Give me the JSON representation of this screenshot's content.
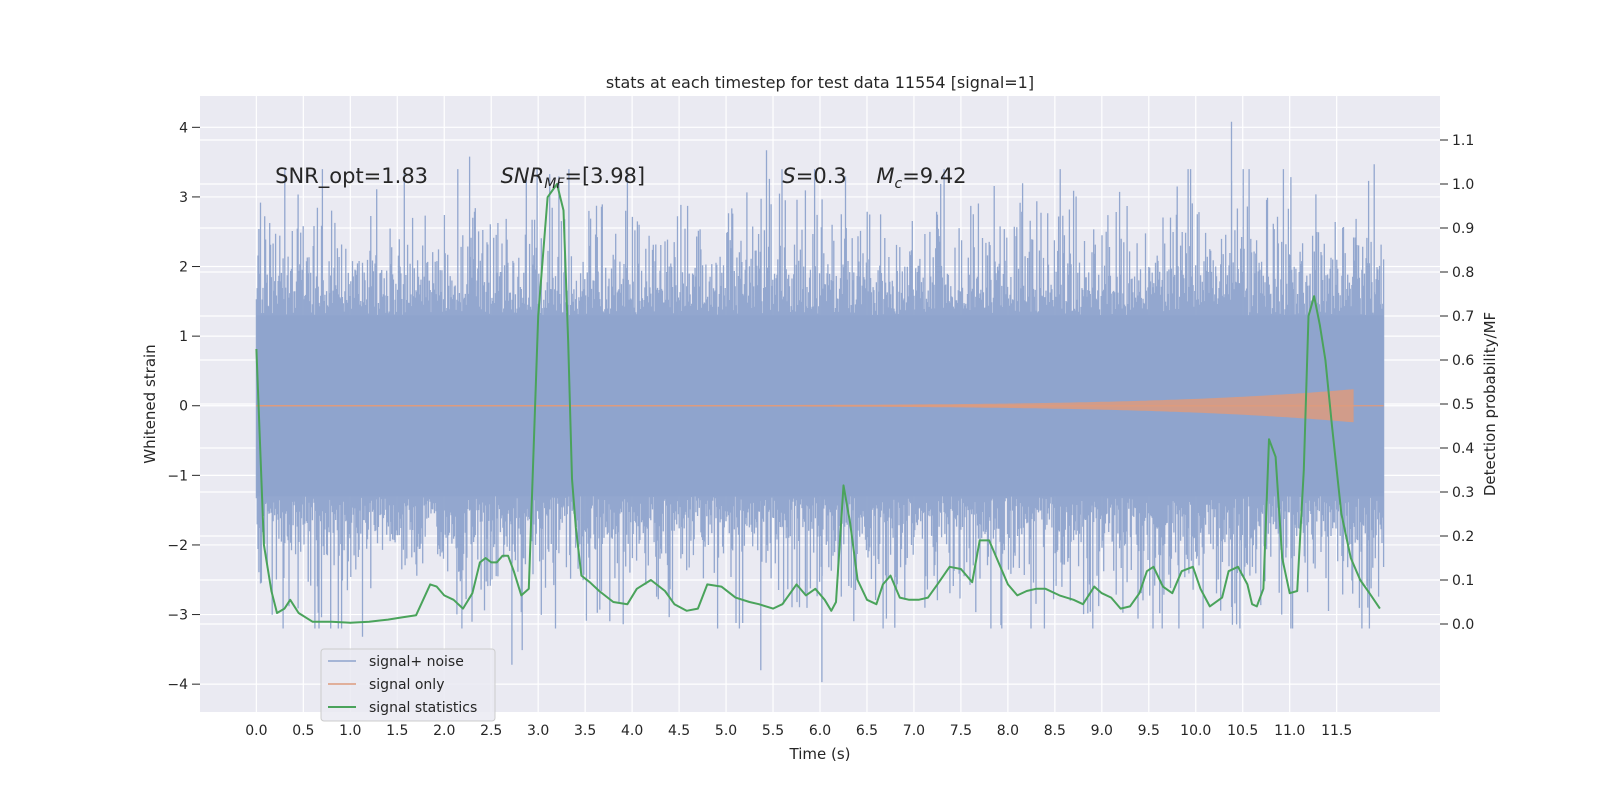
{
  "chart_data": {
    "type": "line",
    "title": "stats at each timestep for test data 11554 [signal=1]",
    "xlabel": "Time (s)",
    "ylabel": "Whitened strain",
    "y2label": "Detection probability/MF",
    "xlim": [
      -0.6,
      12.6
    ],
    "ylim": [
      -4.4,
      4.45
    ],
    "y2lim": [
      -0.2,
      1.2
    ],
    "xticks": [
      0.0,
      0.5,
      1.0,
      1.5,
      2.0,
      2.5,
      3.0,
      3.5,
      4.0,
      4.5,
      5.0,
      5.5,
      6.0,
      6.5,
      7.0,
      7.5,
      8.0,
      8.5,
      9.0,
      9.5,
      10.0,
      10.5,
      11.0,
      11.5
    ],
    "xtick_labels": [
      "0.0",
      "0.5",
      "1.0",
      "1.5",
      "2.0",
      "2.5",
      "3.0",
      "3.5",
      "4.0",
      "4.5",
      "5.0",
      "5.5",
      "6.0",
      "6.5",
      "7.0",
      "7.5",
      "8.0",
      "8.5",
      "9.0",
      "9.5",
      "10.0",
      "10.5",
      "11.0",
      "11.5"
    ],
    "yticks": [
      4,
      3,
      2,
      1,
      0,
      -1,
      -2,
      -3,
      -4
    ],
    "ytick_labels": [
      "4",
      "3",
      "2",
      "1",
      "0",
      "−1",
      "−2",
      "−3",
      "−4"
    ],
    "y2ticks": [
      1.1,
      1.0,
      0.9,
      0.8,
      0.7,
      0.6,
      0.5,
      0.4,
      0.3,
      0.2,
      0.1,
      0.0
    ],
    "y2tick_labels": [
      "1.1",
      "1.0",
      "0.9",
      "0.8",
      "0.7",
      "0.6",
      "0.5",
      "0.4",
      "0.3",
      "0.2",
      "0.1",
      "0.0"
    ],
    "grid": true,
    "legend_position": "lower-left",
    "annotations": [
      {
        "text": "SNR_opt=1.83",
        "x": 0.2,
        "y": 3.3
      },
      {
        "text": "SNR_MF=[3.98]",
        "x": 2.6,
        "y": 3.3
      },
      {
        "text": "S=0.3",
        "x": 5.6,
        "y": 3.3
      },
      {
        "text": "M_c=9.42",
        "x": 6.6,
        "y": 3.3
      }
    ],
    "series": [
      {
        "name": "signal+ noise",
        "color": "#8ea3cc",
        "kind": "strain",
        "x_range": [
          0.0,
          12.0
        ],
        "envelope_core": [
          -1.3,
          1.3
        ],
        "envelope_typical": [
          -2.3,
          2.4
        ],
        "notable_peaks": [
          {
            "x": 10.38,
            "y": 4.08
          },
          {
            "x": 5.43,
            "y": 3.67
          },
          {
            "x": 11.9,
            "y": 3.47
          },
          {
            "x": 2.27,
            "y": 3.58
          },
          {
            "x": 6.02,
            "y": -3.97
          },
          {
            "x": 5.37,
            "y": -3.8
          },
          {
            "x": 2.72,
            "y": -3.72
          },
          {
            "x": 2.83,
            "y": -3.51
          },
          {
            "x": 1.13,
            "y": -3.32
          }
        ]
      },
      {
        "name": "signal only",
        "color": "#dd9b7e",
        "kind": "chirp",
        "x_range": [
          0.0,
          11.68
        ],
        "peak_amplitude": 0.23
      },
      {
        "name": "signal statistics",
        "color": "#4aa35b",
        "axis": "right",
        "x": [
          0.0,
          0.08,
          0.16,
          0.22,
          0.3,
          0.36,
          0.45,
          0.6,
          0.8,
          1.0,
          1.2,
          1.4,
          1.55,
          1.7,
          1.85,
          1.92,
          2.0,
          2.1,
          2.2,
          2.3,
          2.38,
          2.44,
          2.5,
          2.56,
          2.62,
          2.68,
          2.74,
          2.82,
          2.9,
          3.0,
          3.1,
          3.2,
          3.27,
          3.32,
          3.36,
          3.4,
          3.46,
          3.55,
          3.65,
          3.8,
          3.95,
          4.05,
          4.2,
          4.35,
          4.45,
          4.58,
          4.7,
          4.8,
          4.95,
          5.1,
          5.25,
          5.35,
          5.5,
          5.6,
          5.75,
          5.85,
          5.95,
          6.05,
          6.12,
          6.17,
          6.25,
          6.32,
          6.4,
          6.5,
          6.6,
          6.67,
          6.75,
          6.85,
          6.95,
          7.05,
          7.15,
          7.25,
          7.38,
          7.5,
          7.62,
          7.7,
          7.8,
          7.9,
          8.0,
          8.1,
          8.2,
          8.3,
          8.4,
          8.55,
          8.7,
          8.8,
          8.92,
          9.0,
          9.1,
          9.2,
          9.3,
          9.4,
          9.48,
          9.55,
          9.65,
          9.75,
          9.85,
          9.97,
          10.05,
          10.15,
          10.28,
          10.35,
          10.45,
          10.55,
          10.6,
          10.65,
          10.72,
          10.78,
          10.85,
          10.92,
          11.0,
          11.08,
          11.15,
          11.2,
          11.26,
          11.32,
          11.38,
          11.45,
          11.55,
          11.65,
          11.75,
          11.85,
          11.96
        ],
        "values": [
          0.625,
          0.18,
          0.075,
          0.025,
          0.035,
          0.055,
          0.025,
          0.005,
          0.005,
          0.003,
          0.005,
          0.01,
          0.015,
          0.02,
          0.09,
          0.085,
          0.065,
          0.055,
          0.035,
          0.07,
          0.14,
          0.15,
          0.14,
          0.14,
          0.155,
          0.155,
          0.12,
          0.065,
          0.08,
          0.7,
          0.97,
          1.0,
          0.94,
          0.64,
          0.33,
          0.22,
          0.11,
          0.095,
          0.075,
          0.05,
          0.045,
          0.08,
          0.1,
          0.075,
          0.045,
          0.03,
          0.035,
          0.09,
          0.085,
          0.06,
          0.05,
          0.045,
          0.035,
          0.045,
          0.09,
          0.065,
          0.08,
          0.055,
          0.03,
          0.05,
          0.315,
          0.23,
          0.1,
          0.055,
          0.045,
          0.09,
          0.11,
          0.06,
          0.055,
          0.055,
          0.06,
          0.09,
          0.13,
          0.125,
          0.095,
          0.19,
          0.19,
          0.14,
          0.09,
          0.065,
          0.075,
          0.08,
          0.08,
          0.065,
          0.055,
          0.045,
          0.085,
          0.07,
          0.06,
          0.035,
          0.04,
          0.07,
          0.12,
          0.13,
          0.085,
          0.07,
          0.12,
          0.13,
          0.08,
          0.04,
          0.06,
          0.12,
          0.13,
          0.09,
          0.045,
          0.04,
          0.08,
          0.42,
          0.38,
          0.15,
          0.07,
          0.075,
          0.35,
          0.7,
          0.745,
          0.68,
          0.6,
          0.45,
          0.25,
          0.15,
          0.1,
          0.07,
          0.035
        ]
      }
    ]
  }
}
